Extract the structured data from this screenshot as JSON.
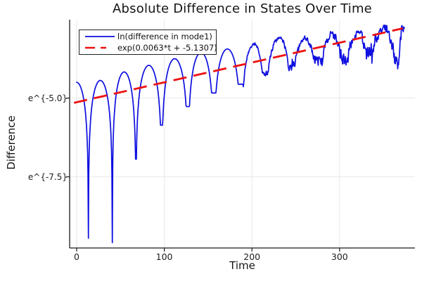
{
  "chart_data": {
    "type": "line",
    "title": "Absolute Difference in States Over Time",
    "xlabel": "Time",
    "ylabel": "Difference",
    "x_ticks": [
      0,
      100,
      200,
      300
    ],
    "y_tick_values": [
      -5.0,
      -7.5
    ],
    "y_tick_labels": [
      "e^{-5.0}",
      "e^{-7.5}"
    ],
    "xlim": [
      -8,
      386
    ],
    "ylim_ln": [
      -9.76,
      -2.51
    ],
    "grid": true,
    "legend_position": "top-left",
    "background": "#ffffff",
    "axis_color": "#1a1a1a",
    "grid_color": "#e7e7e7",
    "series": [
      {
        "name": "ln(difference in mode1)",
        "color": "#0e0ee0",
        "style": "solid",
        "width": 1.7,
        "start_t": 0,
        "end": [
          374,
          -2.77
        ],
        "dips": [
          [
            13.4,
            -9.45
          ],
          [
            40.7,
            -9.59
          ],
          [
            67.7,
            -6.94
          ],
          [
            97,
            -5.86
          ],
          [
            127,
            -5.27
          ],
          [
            156.5,
            -4.84
          ],
          [
            187.5,
            -4.56
          ],
          [
            215,
            -4.18
          ],
          [
            245.5,
            -3.96
          ],
          [
            276,
            -3.85
          ],
          [
            306,
            -3.63
          ],
          [
            332,
            -3.56
          ],
          [
            365,
            -3.8
          ]
        ],
        "peaks": [
          [
            2,
            -4.5
          ],
          [
            27,
            -4.44
          ],
          [
            54.3,
            -4.17
          ],
          [
            82.4,
            -3.96
          ],
          [
            111.8,
            -3.75
          ],
          [
            142,
            -3.55
          ],
          [
            172,
            -3.44
          ],
          [
            202.8,
            -3.29
          ],
          [
            231,
            -3.1
          ],
          [
            260,
            -3.08
          ],
          [
            291,
            -2.99
          ],
          [
            322,
            -2.89
          ],
          [
            352,
            -2.75
          ],
          [
            371,
            -2.77
          ]
        ],
        "noise_start_t": 190,
        "noise_max_amp": 0.22
      },
      {
        "name": "exp(0.0063*t + -5.1307)",
        "color": "#ee1111",
        "style": "dashed",
        "width": 2.8,
        "slope": 0.0063,
        "intercept": -5.1307,
        "t_range": [
          -3,
          372
        ]
      }
    ]
  }
}
